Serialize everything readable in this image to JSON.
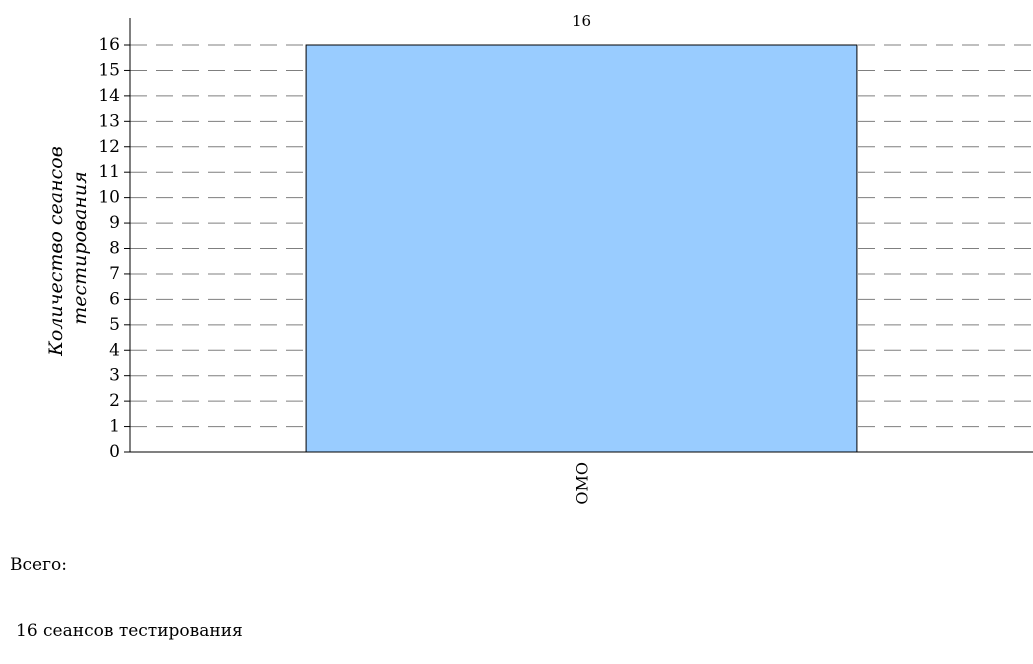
{
  "chart_data": {
    "type": "bar",
    "categories": [
      "ОМО"
    ],
    "values": [
      16
    ],
    "data_labels": [
      "16"
    ],
    "ylabel_lines": [
      "Количество сеансов",
      "тестирования"
    ],
    "xlabel": "",
    "ylim": [
      0,
      16
    ],
    "y_ticks": [
      "0",
      "1",
      "2",
      "3",
      "4",
      "5",
      "6",
      "7",
      "8",
      "9",
      "10",
      "11",
      "12",
      "13",
      "14",
      "15",
      "16"
    ],
    "grid": true,
    "grid_style": "dashed",
    "bar_color": "#99ccff",
    "bar_edge_color": "#000000"
  },
  "summary": {
    "label": "Всего:",
    "count_text": "16 сеансов тестирования"
  }
}
